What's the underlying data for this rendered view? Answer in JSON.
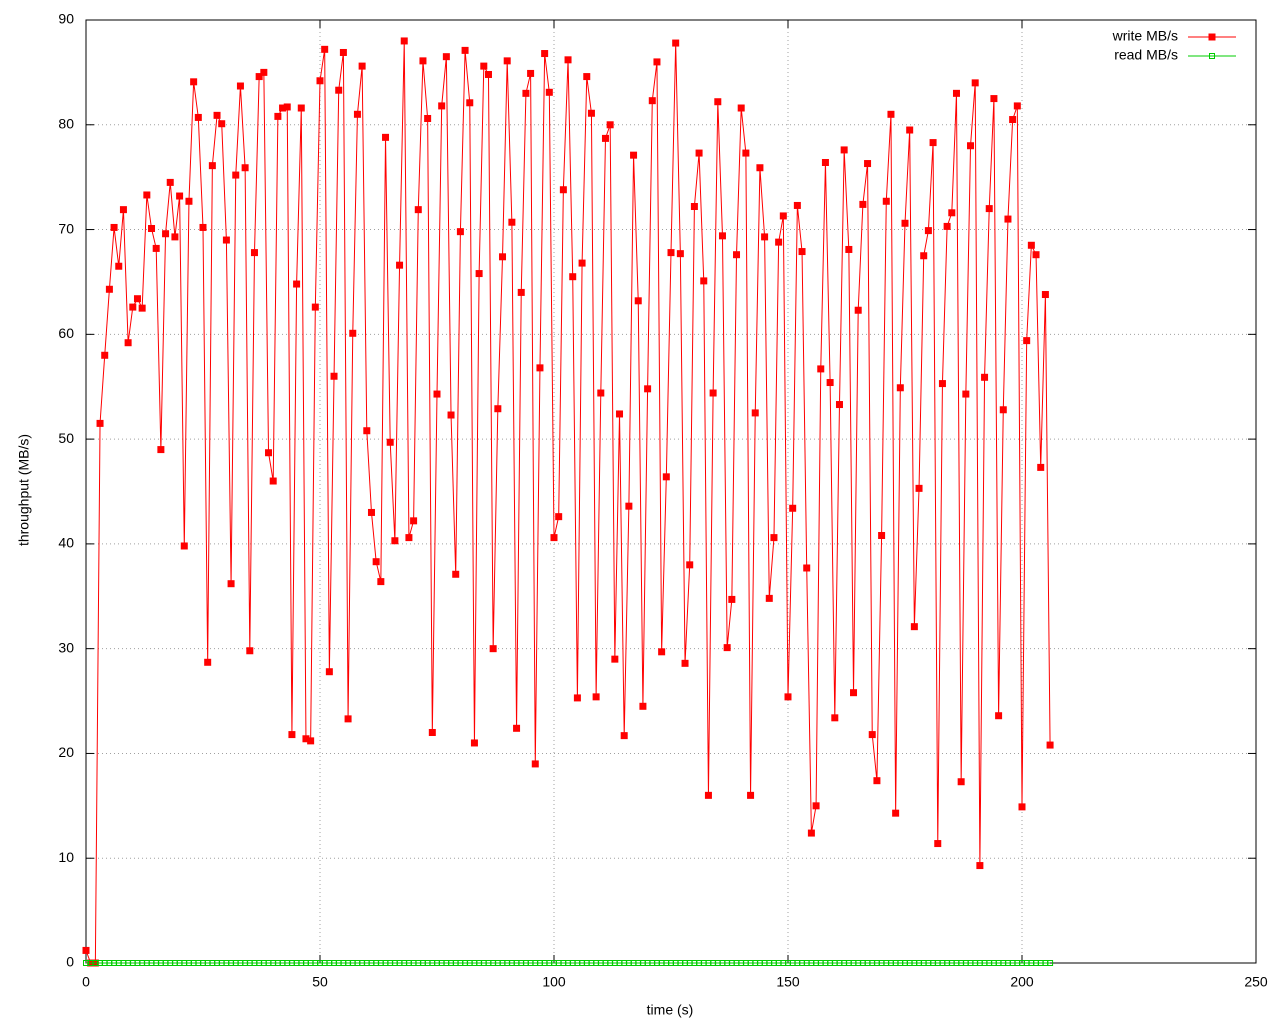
{
  "chart_data": {
    "type": "line",
    "xlabel": "time (s)",
    "ylabel": "throughput (MB/s)",
    "xlim": [
      0,
      250
    ],
    "xticks": [
      0,
      50,
      100,
      150,
      200,
      250
    ],
    "ylim": [
      0,
      90
    ],
    "yticks": [
      0,
      10,
      20,
      30,
      40,
      50,
      60,
      70,
      80,
      90
    ],
    "grid": true,
    "legend": "top right",
    "x": [
      0,
      1,
      2,
      3,
      4,
      5,
      6,
      7,
      8,
      9,
      10,
      11,
      12,
      13,
      14,
      15,
      16,
      17,
      18,
      19,
      20,
      21,
      22,
      23,
      24,
      25,
      26,
      27,
      28,
      29,
      30,
      31,
      32,
      33,
      34,
      35,
      36,
      37,
      38,
      39,
      40,
      41,
      42,
      43,
      44,
      45,
      46,
      47,
      48,
      49,
      50,
      51,
      52,
      53,
      54,
      55,
      56,
      57,
      58,
      59,
      60,
      61,
      62,
      63,
      64,
      65,
      66,
      67,
      68,
      69,
      70,
      71,
      72,
      73,
      74,
      75,
      76,
      77,
      78,
      79,
      80,
      81,
      82,
      83,
      84,
      85,
      86,
      87,
      88,
      89,
      90,
      91,
      92,
      93,
      94,
      95,
      96,
      97,
      98,
      99,
      100,
      101,
      102,
      103,
      104,
      105,
      106,
      107,
      108,
      109,
      110,
      111,
      112,
      113,
      114,
      115,
      116,
      117,
      118,
      119,
      120,
      121,
      122,
      123,
      124,
      125,
      126,
      127,
      128,
      129,
      130,
      131,
      132,
      133,
      134,
      135,
      136,
      137,
      138,
      139,
      140,
      141,
      142,
      143,
      144,
      145,
      146,
      147,
      148,
      149,
      150,
      151,
      152,
      153,
      154,
      155,
      156,
      157,
      158,
      159,
      160,
      161,
      162,
      163,
      164,
      165,
      166,
      167,
      168,
      169,
      170,
      171,
      172,
      173,
      174,
      175,
      176,
      177,
      178,
      179,
      180,
      181,
      182,
      183,
      184,
      185,
      186,
      187,
      188,
      189,
      190,
      191,
      192,
      193,
      194,
      195,
      196,
      197,
      198,
      199,
      200,
      201,
      202,
      203,
      204,
      205,
      206
    ],
    "series": [
      {
        "name": "write MB/s",
        "color": "#ff0000",
        "marker": "filled-square",
        "values": [
          1.2,
          0,
          0,
          51.5,
          58,
          64.3,
          70.2,
          66.5,
          71.9,
          59.2,
          62.6,
          63.4,
          62.5,
          73.3,
          70.1,
          68.2,
          49.0,
          69.6,
          74.5,
          69.3,
          73.2,
          39.8,
          72.7,
          84.1,
          80.7,
          70.2,
          28.7,
          76.1,
          80.9,
          80.1,
          69.0,
          36.2,
          75.2,
          83.7,
          75.9,
          29.8,
          67.8,
          84.6,
          85.0,
          48.7,
          46.0,
          80.8,
          81.6,
          81.7,
          21.8,
          64.8,
          81.6,
          21.4,
          21.2,
          62.6,
          84.2,
          87.2,
          27.8,
          56.0,
          83.3,
          86.9,
          23.3,
          60.1,
          81.0,
          85.6,
          50.8,
          43.0,
          38.3,
          36.4,
          78.8,
          49.7,
          40.3,
          66.6,
          88.0,
          40.6,
          42.2,
          71.9,
          86.1,
          80.6,
          22.0,
          54.3,
          81.8,
          86.5,
          52.3,
          37.1,
          69.8,
          87.1,
          82.1,
          21.0,
          65.8,
          85.6,
          84.8,
          30.0,
          52.9,
          67.4,
          86.1,
          70.7,
          22.4,
          64.0,
          83.0,
          84.9,
          19.0,
          56.8,
          86.8,
          83.1,
          40.6,
          42.6,
          73.8,
          86.2,
          65.5,
          25.3,
          66.8,
          84.6,
          81.1,
          25.4,
          54.4,
          78.7,
          80.0,
          29.0,
          52.4,
          21.7,
          43.6,
          77.1,
          63.2,
          24.5,
          54.8,
          82.3,
          86.0,
          29.7,
          46.4,
          67.8,
          87.8,
          67.7,
          28.6,
          38.0,
          72.2,
          77.3,
          65.1,
          16.0,
          54.4,
          82.2,
          69.4,
          30.1,
          34.7,
          67.6,
          81.6,
          77.3,
          16.0,
          52.5,
          75.9,
          69.3,
          34.8,
          40.6,
          68.8,
          71.3,
          25.4,
          43.4,
          72.3,
          67.9,
          37.7,
          12.4,
          15.0,
          56.7,
          76.4,
          55.4,
          23.4,
          53.3,
          77.6,
          68.1,
          25.8,
          62.3,
          72.4,
          76.3,
          21.8,
          17.4,
          40.8,
          72.7,
          81.0,
          14.3,
          54.9,
          70.6,
          79.5,
          32.1,
          45.3,
          67.5,
          69.9,
          78.3,
          11.4,
          55.3,
          70.3,
          71.6,
          83.0,
          17.3,
          54.3,
          78.0,
          84.0,
          9.3,
          55.9,
          72.0,
          82.5,
          23.6,
          52.8,
          71.0,
          80.5,
          81.8,
          14.9,
          59.4,
          68.5,
          67.6,
          47.3,
          63.8,
          20.8
        ]
      },
      {
        "name": "read MB/s",
        "color": "#00cc00",
        "marker": "hollow-square",
        "values": [
          0,
          0,
          0,
          0,
          0,
          0,
          0,
          0,
          0,
          0,
          0,
          0,
          0,
          0,
          0,
          0,
          0,
          0,
          0,
          0,
          0,
          0,
          0,
          0,
          0,
          0,
          0,
          0,
          0,
          0,
          0,
          0,
          0,
          0,
          0,
          0,
          0,
          0,
          0,
          0,
          0,
          0,
          0,
          0,
          0,
          0,
          0,
          0,
          0,
          0,
          0,
          0,
          0,
          0,
          0,
          0,
          0,
          0,
          0,
          0,
          0,
          0,
          0,
          0,
          0,
          0,
          0,
          0,
          0,
          0,
          0,
          0,
          0,
          0,
          0,
          0,
          0,
          0,
          0,
          0,
          0,
          0,
          0,
          0,
          0,
          0,
          0,
          0,
          0,
          0,
          0,
          0,
          0,
          0,
          0,
          0,
          0,
          0,
          0,
          0,
          0,
          0,
          0,
          0,
          0,
          0,
          0,
          0,
          0,
          0,
          0,
          0,
          0,
          0,
          0,
          0,
          0,
          0,
          0,
          0,
          0,
          0,
          0,
          0,
          0,
          0,
          0,
          0,
          0,
          0,
          0,
          0,
          0,
          0,
          0,
          0,
          0,
          0,
          0,
          0,
          0,
          0,
          0,
          0,
          0,
          0,
          0,
          0,
          0,
          0,
          0,
          0,
          0,
          0,
          0,
          0,
          0,
          0,
          0,
          0,
          0,
          0,
          0,
          0,
          0,
          0,
          0,
          0,
          0,
          0,
          0,
          0,
          0,
          0,
          0,
          0,
          0,
          0,
          0,
          0,
          0,
          0,
          0,
          0,
          0,
          0,
          0,
          0,
          0,
          0,
          0,
          0,
          0,
          0,
          0,
          0,
          0,
          0,
          0,
          0,
          0,
          0,
          0,
          0,
          0,
          0,
          0
        ]
      }
    ]
  }
}
